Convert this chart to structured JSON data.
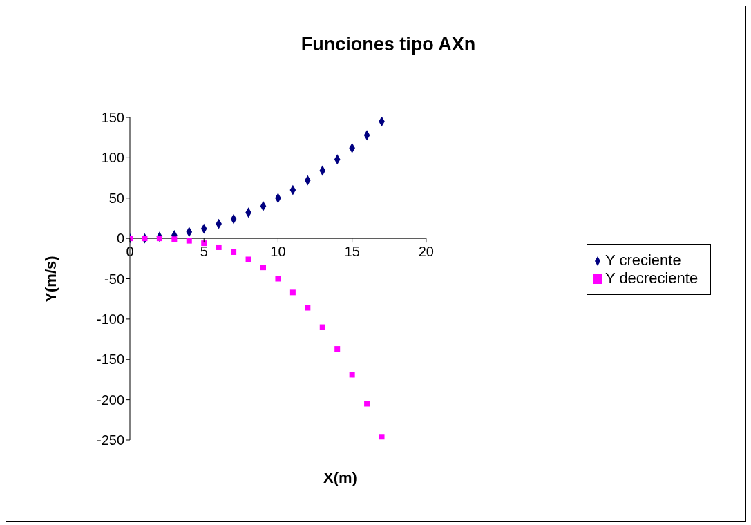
{
  "chart_data": {
    "type": "scatter",
    "title": "Funciones tipo AXn",
    "xlabel": "X(m)",
    "ylabel": "Y(m/s)",
    "x": [
      0,
      1,
      2,
      3,
      4,
      5,
      6,
      7,
      8,
      9,
      10,
      11,
      12,
      13,
      14,
      15,
      16,
      17
    ],
    "series": [
      {
        "name": "Y creciente",
        "color": "#000080",
        "marker": "diamond",
        "values": [
          0,
          0,
          2,
          4,
          8,
          12,
          18,
          24,
          32,
          40,
          50,
          60,
          72,
          84,
          98,
          112,
          128,
          145
        ]
      },
      {
        "name": "Y decreciente",
        "color": "#ff00ff",
        "marker": "square",
        "values": [
          0,
          0,
          0,
          -1,
          -3,
          -6,
          -11,
          -17,
          -26,
          -36,
          -50,
          -67,
          -86,
          -110,
          -137,
          -169,
          -205,
          -246
        ]
      }
    ],
    "xlim": [
      0,
      20
    ],
    "xticks": [
      0,
      5,
      10,
      15,
      20
    ],
    "ylim": [
      -250,
      150
    ],
    "yticks": [
      -250,
      -200,
      -150,
      -100,
      -50,
      0,
      50,
      100,
      150
    ],
    "grid": false,
    "legend": "right"
  }
}
